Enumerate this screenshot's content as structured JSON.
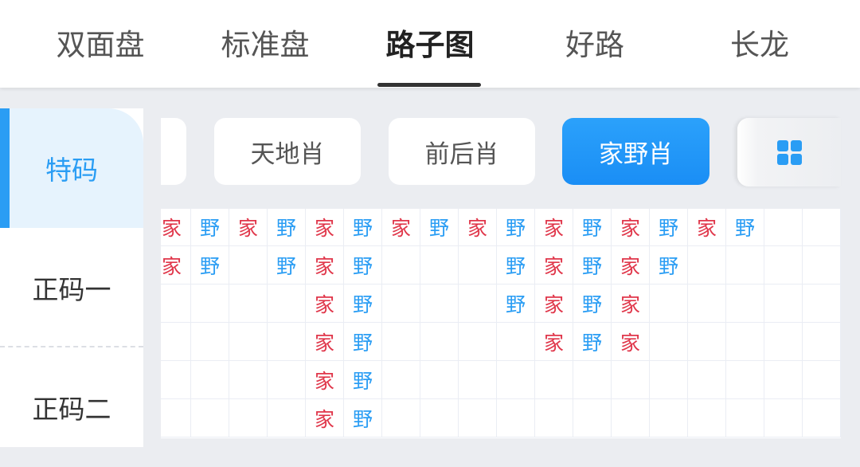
{
  "tabs": [
    {
      "label": "双面盘"
    },
    {
      "label": "标准盘"
    },
    {
      "label": "路子图",
      "active": true
    },
    {
      "label": "好路"
    },
    {
      "label": "长龙"
    }
  ],
  "sidebar": {
    "items": [
      {
        "label": "特码",
        "active": true
      },
      {
        "label": "正码一"
      },
      {
        "label": "正码二"
      }
    ]
  },
  "filters": [
    {
      "label": ""
    },
    {
      "label": "天地肖"
    },
    {
      "label": "前后肖"
    },
    {
      "label": "家野肖",
      "active": true
    }
  ],
  "grid_icon": "grid-icon",
  "colors": {
    "家": "#e0364a",
    "野": "#2a9df4",
    "accent": "#2a9df4"
  },
  "road": [
    [
      "家",
      "野",
      "家",
      "野",
      "家",
      "野",
      "家",
      "野",
      "家",
      "野",
      "家",
      "野",
      "家",
      "野",
      "家",
      "野",
      "",
      ""
    ],
    [
      "家",
      "野",
      "",
      "野",
      "家",
      "野",
      "",
      "",
      "",
      "野",
      "家",
      "野",
      "家",
      "野",
      "",
      "",
      "",
      ""
    ],
    [
      "",
      "",
      "",
      "",
      "家",
      "野",
      "",
      "",
      "",
      "野",
      "家",
      "野",
      "家",
      "",
      "",
      "",
      "",
      ""
    ],
    [
      "",
      "",
      "",
      "",
      "家",
      "野",
      "",
      "",
      "",
      "",
      "家",
      "野",
      "家",
      "",
      "",
      "",
      "",
      ""
    ],
    [
      "",
      "",
      "",
      "",
      "家",
      "野",
      "",
      "",
      "",
      "",
      "",
      "",
      "",
      "",
      "",
      "",
      "",
      ""
    ],
    [
      "",
      "",
      "",
      "",
      "家",
      "野",
      "",
      "",
      "",
      "",
      "",
      "",
      "",
      "",
      "",
      "",
      "",
      ""
    ]
  ]
}
